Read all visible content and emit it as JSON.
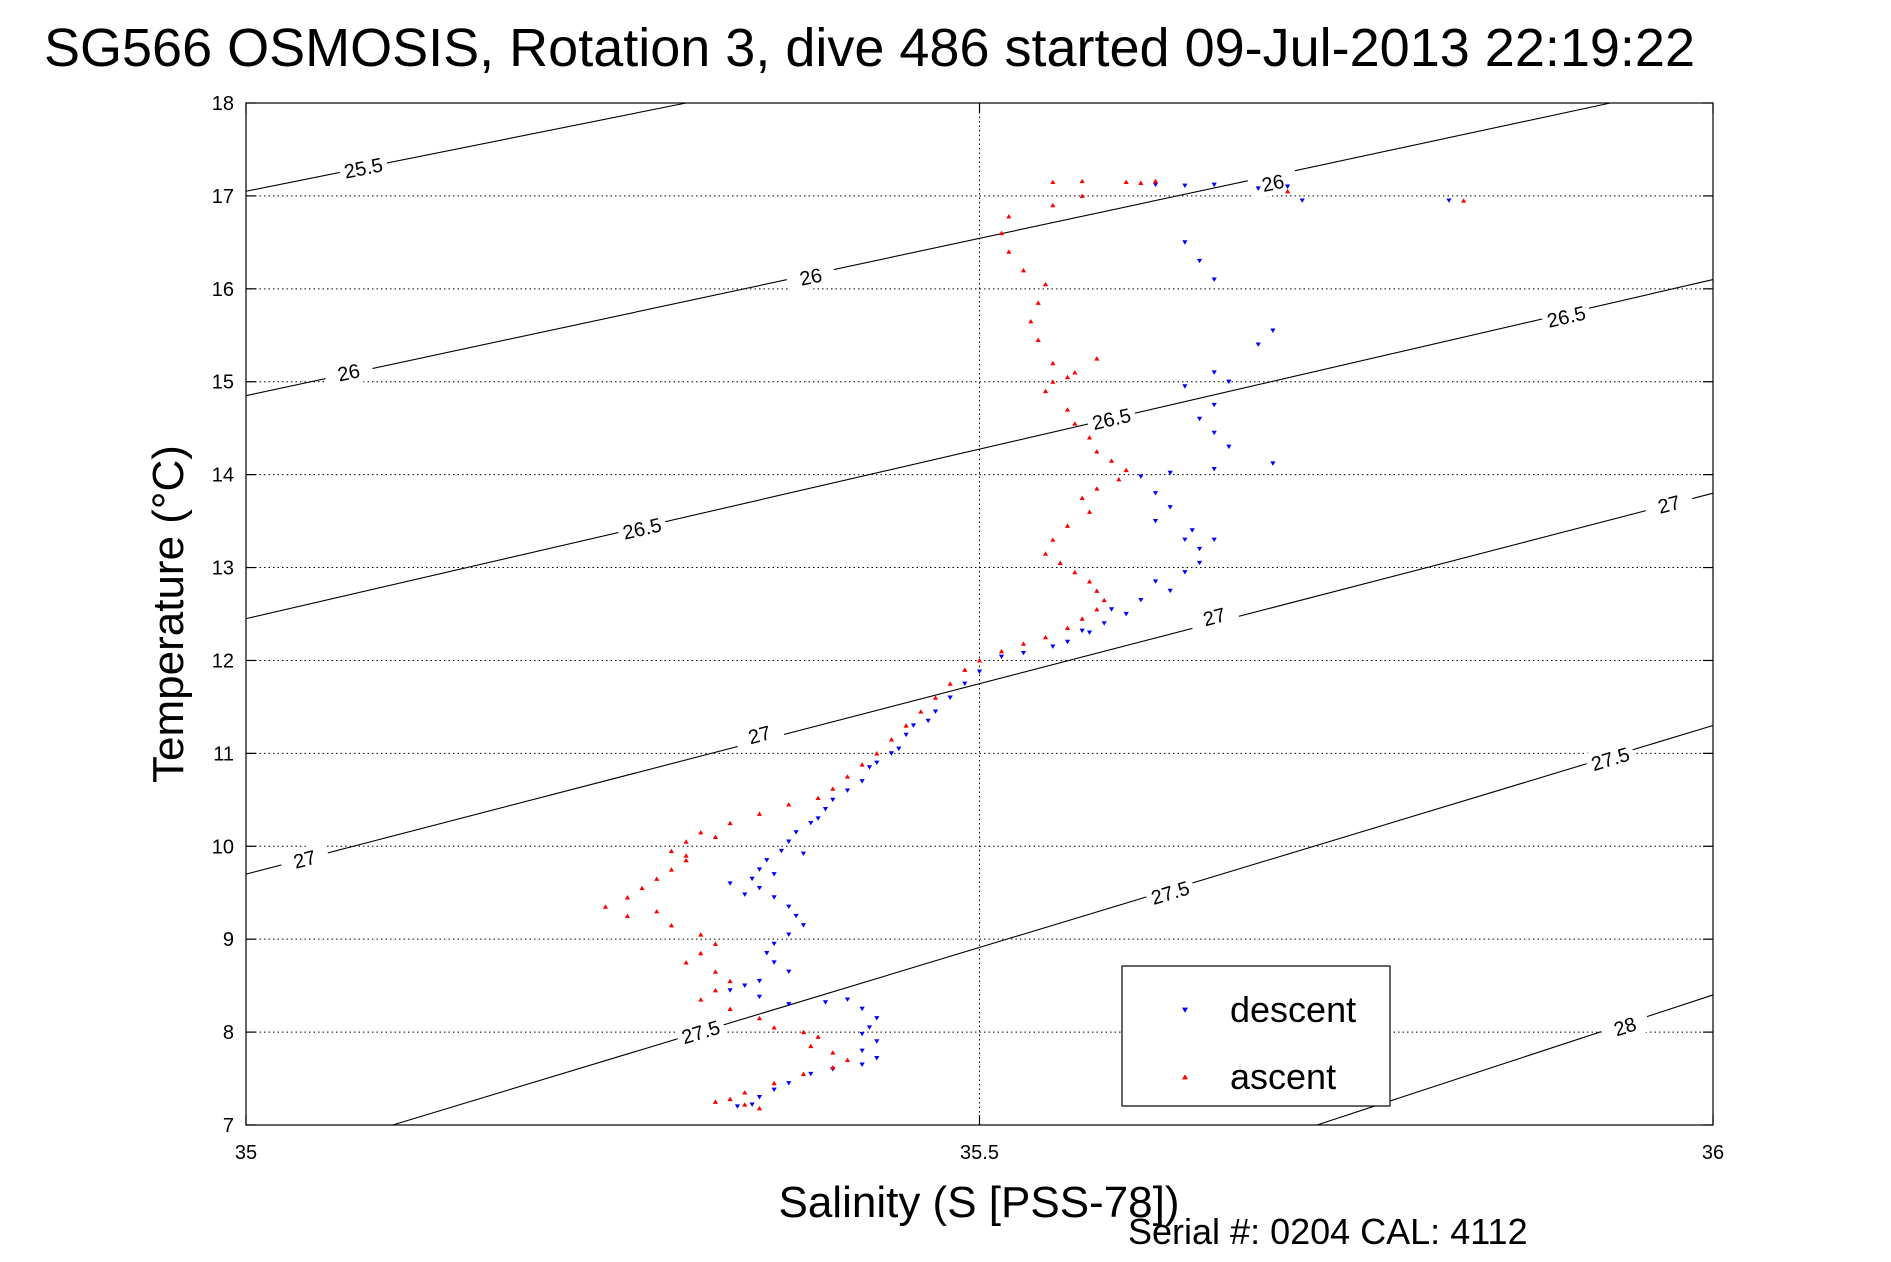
{
  "chart_data": {
    "type": "scatter",
    "title": "SG566 OSMOSIS, Rotation 3, dive 486 started 09-Jul-2013 22:19:22",
    "xlabel": "Salinity (S [PSS-78])",
    "ylabel": "Temperature (°C)",
    "xlim": [
      35,
      36
    ],
    "ylim": [
      7,
      18
    ],
    "xticks": [
      35,
      35.5,
      36
    ],
    "xtick_labels": [
      "35",
      "35.5",
      "36"
    ],
    "yticks": [
      7,
      8,
      9,
      10,
      11,
      12,
      13,
      14,
      15,
      16,
      17,
      18
    ],
    "ytick_labels": [
      "7",
      "8",
      "9",
      "10",
      "11",
      "12",
      "13",
      "14",
      "15",
      "16",
      "17",
      "18"
    ],
    "grid": true,
    "legend_position": "bottom-right",
    "footer": "Serial #: 0204  CAL: 4112",
    "isopycnals": [
      {
        "label": "25.5",
        "points": [
          [
            35.0,
            17.05
          ],
          [
            35.3,
            18.0
          ]
        ],
        "label_at": [
          35.08,
          17.3
        ]
      },
      {
        "label": "26",
        "points": [
          [
            35.0,
            14.85
          ],
          [
            35.93,
            18.0
          ]
        ],
        "label_at": [
          35.07,
          15.1
        ]
      },
      {
        "label": "26",
        "points": [
          [
            35.0,
            14.85
          ],
          [
            35.93,
            18.0
          ]
        ],
        "label_at": [
          35.385,
          16.13
        ]
      },
      {
        "label": "26",
        "points": [
          [
            35.0,
            14.85
          ],
          [
            35.93,
            18.0
          ]
        ],
        "label_at": [
          35.7,
          17.14
        ]
      },
      {
        "label": "26.5",
        "points": [
          [
            35.0,
            12.45
          ],
          [
            36.0,
            16.1
          ]
        ],
        "label_at": [
          35.27,
          13.42
        ]
      },
      {
        "label": "26.5",
        "points": [
          [
            35.0,
            12.45
          ],
          [
            36.0,
            16.1
          ]
        ],
        "label_at": [
          35.59,
          14.6
        ]
      },
      {
        "label": "26.5",
        "points": [
          [
            35.0,
            12.45
          ],
          [
            36.0,
            16.1
          ]
        ],
        "label_at": [
          35.9,
          15.7
        ]
      },
      {
        "label": "27",
        "points": [
          [
            35.0,
            9.7
          ],
          [
            36.0,
            13.8
          ]
        ],
        "label_at": [
          35.04,
          9.86
        ]
      },
      {
        "label": "27",
        "points": [
          [
            35.0,
            9.7
          ],
          [
            36.0,
            13.8
          ]
        ],
        "label_at": [
          35.35,
          11.2
        ]
      },
      {
        "label": "27",
        "points": [
          [
            35.0,
            9.7
          ],
          [
            36.0,
            13.8
          ]
        ],
        "label_at": [
          35.66,
          12.47
        ]
      },
      {
        "label": "27",
        "points": [
          [
            35.0,
            9.7
          ],
          [
            36.0,
            13.8
          ]
        ],
        "label_at": [
          35.97,
          13.68
        ]
      },
      {
        "label": "27.5",
        "points": [
          [
            35.1,
            7.0
          ],
          [
            36.0,
            11.3
          ]
        ],
        "label_at": [
          35.31,
          8.0
        ]
      },
      {
        "label": "27.5",
        "points": [
          [
            35.1,
            7.0
          ],
          [
            36.0,
            11.3
          ]
        ],
        "label_at": [
          35.63,
          9.5
        ]
      },
      {
        "label": "27.5",
        "points": [
          [
            35.1,
            7.0
          ],
          [
            36.0,
            11.3
          ]
        ],
        "label_at": [
          35.93,
          10.94
        ]
      },
      {
        "label": "28",
        "points": [
          [
            35.73,
            7.0
          ],
          [
            36.0,
            8.4
          ]
        ],
        "label_at": [
          35.94,
          8.06
        ]
      }
    ],
    "series": [
      {
        "name": "descent",
        "color": "#0000ff",
        "marker": "triangle-down",
        "points": [
          [
            35.62,
            17.12
          ],
          [
            35.64,
            17.11
          ],
          [
            35.66,
            17.12
          ],
          [
            35.69,
            17.08
          ],
          [
            35.71,
            17.1
          ],
          [
            35.72,
            16.95
          ],
          [
            35.82,
            16.95
          ],
          [
            35.64,
            16.5
          ],
          [
            35.65,
            16.3
          ],
          [
            35.66,
            16.1
          ],
          [
            35.7,
            15.55
          ],
          [
            35.69,
            15.4
          ],
          [
            35.66,
            15.1
          ],
          [
            35.67,
            15.0
          ],
          [
            35.64,
            14.95
          ],
          [
            35.66,
            14.75
          ],
          [
            35.65,
            14.6
          ],
          [
            35.66,
            14.45
          ],
          [
            35.67,
            14.3
          ],
          [
            35.7,
            14.12
          ],
          [
            35.66,
            14.06
          ],
          [
            35.63,
            14.02
          ],
          [
            35.61,
            13.98
          ],
          [
            35.62,
            13.8
          ],
          [
            35.63,
            13.65
          ],
          [
            35.62,
            13.5
          ],
          [
            35.645,
            13.4
          ],
          [
            35.64,
            13.3
          ],
          [
            35.65,
            13.2
          ],
          [
            35.66,
            13.3
          ],
          [
            35.65,
            13.05
          ],
          [
            35.64,
            12.95
          ],
          [
            35.62,
            12.85
          ],
          [
            35.63,
            12.75
          ],
          [
            35.61,
            12.65
          ],
          [
            35.59,
            12.55
          ],
          [
            35.6,
            12.5
          ],
          [
            35.585,
            12.4
          ],
          [
            35.575,
            12.3
          ],
          [
            35.56,
            12.2
          ],
          [
            35.57,
            12.32
          ],
          [
            35.55,
            12.15
          ],
          [
            35.53,
            12.08
          ],
          [
            35.515,
            12.04
          ],
          [
            35.5,
            11.88
          ],
          [
            35.49,
            11.75
          ],
          [
            35.48,
            11.6
          ],
          [
            35.47,
            11.45
          ],
          [
            35.465,
            11.35
          ],
          [
            35.455,
            11.3
          ],
          [
            35.45,
            11.2
          ],
          [
            35.445,
            11.05
          ],
          [
            35.44,
            11.0
          ],
          [
            35.43,
            10.9
          ],
          [
            35.425,
            10.85
          ],
          [
            35.42,
            10.7
          ],
          [
            35.41,
            10.6
          ],
          [
            35.4,
            10.5
          ],
          [
            35.395,
            10.4
          ],
          [
            35.39,
            10.3
          ],
          [
            35.385,
            10.25
          ],
          [
            35.375,
            10.15
          ],
          [
            35.37,
            10.05
          ],
          [
            35.365,
            9.95
          ],
          [
            35.355,
            9.85
          ],
          [
            35.35,
            9.75
          ],
          [
            35.345,
            9.65
          ],
          [
            35.35,
            9.55
          ],
          [
            35.36,
            9.45
          ],
          [
            35.37,
            9.35
          ],
          [
            35.375,
            9.25
          ],
          [
            35.38,
            9.15
          ],
          [
            35.37,
            9.05
          ],
          [
            35.36,
            8.95
          ],
          [
            35.355,
            8.85
          ],
          [
            35.36,
            8.75
          ],
          [
            35.37,
            8.65
          ],
          [
            35.35,
            8.55
          ],
          [
            35.34,
            8.5
          ],
          [
            35.33,
            8.45
          ],
          [
            35.35,
            8.38
          ],
          [
            35.37,
            8.3
          ],
          [
            35.395,
            8.32
          ],
          [
            35.41,
            8.35
          ],
          [
            35.42,
            8.25
          ],
          [
            35.43,
            8.15
          ],
          [
            35.425,
            8.05
          ],
          [
            35.42,
            7.98
          ],
          [
            35.43,
            7.9
          ],
          [
            35.42,
            7.8
          ],
          [
            35.43,
            7.72
          ],
          [
            35.42,
            7.65
          ],
          [
            35.4,
            7.6
          ],
          [
            35.385,
            7.55
          ],
          [
            35.37,
            7.45
          ],
          [
            35.36,
            7.38
          ],
          [
            35.35,
            7.3
          ],
          [
            35.345,
            7.22
          ],
          [
            35.335,
            7.2
          ],
          [
            35.34,
            9.48
          ],
          [
            35.33,
            9.6
          ],
          [
            35.36,
            9.7
          ],
          [
            35.38,
            9.92
          ]
        ]
      },
      {
        "name": "ascent",
        "color": "#ff0000",
        "marker": "triangle-up",
        "points": [
          [
            35.55,
            17.15
          ],
          [
            35.57,
            17.16
          ],
          [
            35.6,
            17.15
          ],
          [
            35.61,
            17.14
          ],
          [
            35.62,
            17.16
          ],
          [
            35.71,
            17.05
          ],
          [
            35.83,
            16.95
          ],
          [
            35.57,
            17.0
          ],
          [
            35.55,
            16.9
          ],
          [
            35.52,
            16.78
          ],
          [
            35.515,
            16.6
          ],
          [
            35.52,
            16.4
          ],
          [
            35.53,
            16.2
          ],
          [
            35.545,
            16.05
          ],
          [
            35.54,
            15.85
          ],
          [
            35.535,
            15.65
          ],
          [
            35.54,
            15.45
          ],
          [
            35.55,
            15.2
          ],
          [
            35.56,
            15.05
          ],
          [
            35.58,
            15.25
          ],
          [
            35.565,
            15.1
          ],
          [
            35.55,
            15.0
          ],
          [
            35.545,
            14.9
          ],
          [
            35.56,
            14.7
          ],
          [
            35.565,
            14.55
          ],
          [
            35.575,
            14.4
          ],
          [
            35.58,
            14.25
          ],
          [
            35.59,
            14.15
          ],
          [
            35.6,
            14.05
          ],
          [
            35.595,
            13.95
          ],
          [
            35.58,
            13.85
          ],
          [
            35.57,
            13.75
          ],
          [
            35.575,
            13.6
          ],
          [
            35.56,
            13.45
          ],
          [
            35.55,
            13.3
          ],
          [
            35.545,
            13.15
          ],
          [
            35.555,
            13.05
          ],
          [
            35.565,
            12.95
          ],
          [
            35.575,
            12.85
          ],
          [
            35.58,
            12.75
          ],
          [
            35.585,
            12.65
          ],
          [
            35.58,
            12.55
          ],
          [
            35.57,
            12.45
          ],
          [
            35.56,
            12.35
          ],
          [
            35.545,
            12.25
          ],
          [
            35.53,
            12.18
          ],
          [
            35.515,
            12.1
          ],
          [
            35.5,
            12.0
          ],
          [
            35.49,
            11.9
          ],
          [
            35.48,
            11.75
          ],
          [
            35.47,
            11.6
          ],
          [
            35.46,
            11.45
          ],
          [
            35.45,
            11.3
          ],
          [
            35.44,
            11.15
          ],
          [
            35.43,
            11.0
          ],
          [
            35.42,
            10.88
          ],
          [
            35.41,
            10.75
          ],
          [
            35.4,
            10.62
          ],
          [
            35.39,
            10.52
          ],
          [
            35.37,
            10.45
          ],
          [
            35.35,
            10.35
          ],
          [
            35.33,
            10.25
          ],
          [
            35.31,
            10.15
          ],
          [
            35.3,
            10.05
          ],
          [
            35.29,
            9.95
          ],
          [
            35.3,
            9.85
          ],
          [
            35.29,
            9.75
          ],
          [
            35.28,
            9.65
          ],
          [
            35.27,
            9.55
          ],
          [
            35.26,
            9.45
          ],
          [
            35.245,
            9.35
          ],
          [
            35.26,
            9.25
          ],
          [
            35.29,
            9.15
          ],
          [
            35.31,
            9.05
          ],
          [
            35.32,
            8.95
          ],
          [
            35.31,
            8.85
          ],
          [
            35.3,
            8.75
          ],
          [
            35.32,
            8.65
          ],
          [
            35.33,
            8.55
          ],
          [
            35.32,
            8.45
          ],
          [
            35.31,
            8.35
          ],
          [
            35.33,
            8.25
          ],
          [
            35.35,
            8.15
          ],
          [
            35.36,
            8.05
          ],
          [
            35.38,
            8.0
          ],
          [
            35.39,
            7.95
          ],
          [
            35.385,
            7.85
          ],
          [
            35.4,
            7.78
          ],
          [
            35.41,
            7.7
          ],
          [
            35.4,
            7.62
          ],
          [
            35.38,
            7.55
          ],
          [
            35.36,
            7.45
          ],
          [
            35.34,
            7.35
          ],
          [
            35.33,
            7.28
          ],
          [
            35.34,
            7.22
          ],
          [
            35.35,
            7.18
          ],
          [
            35.32,
            7.25
          ],
          [
            35.3,
            9.9
          ],
          [
            35.32,
            10.1
          ],
          [
            35.28,
            9.3
          ]
        ]
      }
    ]
  }
}
